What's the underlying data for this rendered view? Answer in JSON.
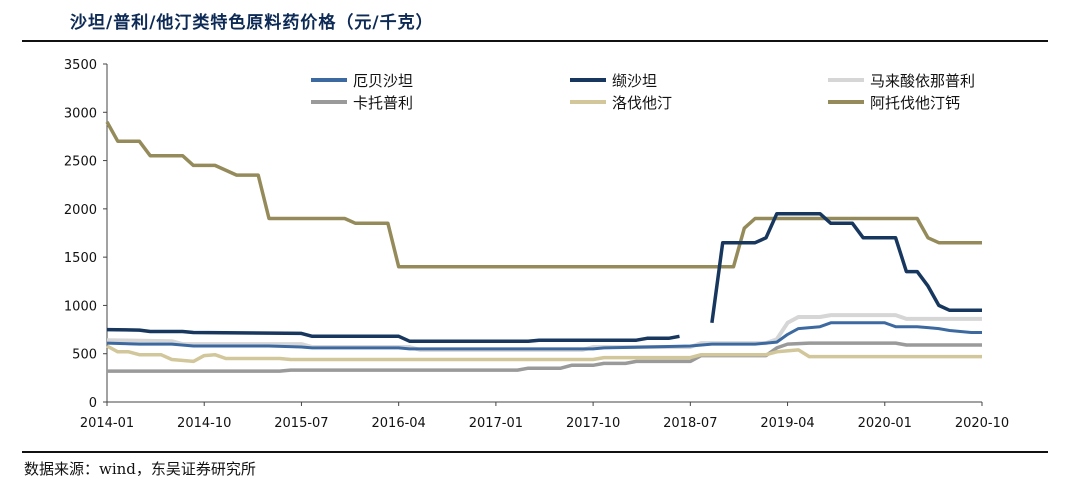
{
  "title": "沙坦/普利/他汀类特色原料药价格（元/千克）",
  "source": "数据来源：wind，东吴证券研究所",
  "chart_data": {
    "type": "line",
    "ylim": [
      0,
      3500
    ],
    "yticks": [
      0,
      500,
      1000,
      1500,
      2000,
      2500,
      3000,
      3500
    ],
    "xlim": [
      0,
      81
    ],
    "xticks": [
      {
        "label": "2014-01",
        "m": 0
      },
      {
        "label": "2014-10",
        "m": 9
      },
      {
        "label": "2015-07",
        "m": 18
      },
      {
        "label": "2016-04",
        "m": 27
      },
      {
        "label": "2017-01",
        "m": 36
      },
      {
        "label": "2017-10",
        "m": 45
      },
      {
        "label": "2018-07",
        "m": 54
      },
      {
        "label": "2019-04",
        "m": 63
      },
      {
        "label": "2020-01",
        "m": 72
      },
      {
        "label": "2020-10",
        "m": 81
      }
    ],
    "series": [
      {
        "name": "厄贝沙坦",
        "color": "#3c6aa0",
        "width": 3,
        "points": [
          [
            0,
            610
          ],
          [
            3,
            600
          ],
          [
            6,
            600
          ],
          [
            8,
            580
          ],
          [
            15,
            580
          ],
          [
            18,
            570
          ],
          [
            19,
            560
          ],
          [
            27,
            560
          ],
          [
            28,
            550
          ],
          [
            45,
            550
          ],
          [
            46,
            560
          ],
          [
            54,
            580
          ],
          [
            56,
            600
          ],
          [
            60,
            600
          ],
          [
            62,
            620
          ],
          [
            63,
            700
          ],
          [
            64,
            760
          ],
          [
            66,
            780
          ],
          [
            67,
            820
          ],
          [
            72,
            820
          ],
          [
            73,
            780
          ],
          [
            75,
            780
          ],
          [
            76,
            770
          ],
          [
            77,
            760
          ],
          [
            78,
            740
          ],
          [
            80,
            720
          ],
          [
            81,
            720
          ]
        ]
      },
      {
        "name": "缬沙坦",
        "color": "#17375e",
        "width": 3.5,
        "points": [
          [
            0,
            750
          ],
          [
            3,
            745
          ],
          [
            4,
            730
          ],
          [
            7,
            730
          ],
          [
            8,
            720
          ],
          [
            18,
            710
          ],
          [
            19,
            680
          ],
          [
            27,
            680
          ],
          [
            28,
            630
          ],
          [
            39,
            630
          ],
          [
            40,
            640
          ],
          [
            49,
            640
          ],
          [
            50,
            660
          ],
          [
            52,
            660
          ],
          [
            53,
            680
          ]
        ],
        "points2": [
          [
            56,
            820
          ],
          [
            57,
            1650
          ],
          [
            60,
            1650
          ],
          [
            61,
            1700
          ],
          [
            62,
            1950
          ],
          [
            66,
            1950
          ],
          [
            67,
            1850
          ],
          [
            69,
            1850
          ],
          [
            70,
            1700
          ],
          [
            73,
            1700
          ],
          [
            74,
            1350
          ],
          [
            75,
            1350
          ],
          [
            76,
            1200
          ],
          [
            77,
            1000
          ],
          [
            78,
            950
          ],
          [
            81,
            950
          ]
        ]
      },
      {
        "name": "马来酸依那普利",
        "color": "#d6d6d6",
        "width": 4,
        "points": [
          [
            0,
            640
          ],
          [
            6,
            630
          ],
          [
            7,
            600
          ],
          [
            18,
            600
          ],
          [
            19,
            570
          ],
          [
            28,
            570
          ],
          [
            29,
            540
          ],
          [
            44,
            540
          ],
          [
            45,
            570
          ],
          [
            54,
            570
          ],
          [
            55,
            610
          ],
          [
            61,
            610
          ],
          [
            62,
            650
          ],
          [
            63,
            820
          ],
          [
            64,
            880
          ],
          [
            66,
            880
          ],
          [
            67,
            900
          ],
          [
            73,
            900
          ],
          [
            74,
            860
          ],
          [
            81,
            860
          ]
        ]
      },
      {
        "name": "卡托普利",
        "color": "#9a9a9a",
        "width": 3.5,
        "points": [
          [
            0,
            320
          ],
          [
            16,
            320
          ],
          [
            17,
            330
          ],
          [
            38,
            330
          ],
          [
            39,
            350
          ],
          [
            42,
            350
          ],
          [
            43,
            380
          ],
          [
            45,
            380
          ],
          [
            46,
            400
          ],
          [
            48,
            400
          ],
          [
            49,
            420
          ],
          [
            54,
            420
          ],
          [
            55,
            480
          ],
          [
            61,
            480
          ],
          [
            62,
            560
          ],
          [
            63,
            600
          ],
          [
            65,
            610
          ],
          [
            73,
            610
          ],
          [
            74,
            590
          ],
          [
            81,
            590
          ]
        ]
      },
      {
        "name": "洛伐他汀",
        "color": "#d2c79a",
        "width": 3.5,
        "points": [
          [
            0,
            580
          ],
          [
            1,
            520
          ],
          [
            2,
            520
          ],
          [
            3,
            490
          ],
          [
            5,
            490
          ],
          [
            6,
            440
          ],
          [
            8,
            420
          ],
          [
            9,
            480
          ],
          [
            10,
            490
          ],
          [
            11,
            450
          ],
          [
            16,
            450
          ],
          [
            17,
            440
          ],
          [
            45,
            440
          ],
          [
            46,
            460
          ],
          [
            54,
            460
          ],
          [
            55,
            490
          ],
          [
            61,
            490
          ],
          [
            62,
            520
          ],
          [
            64,
            540
          ],
          [
            65,
            470
          ],
          [
            81,
            470
          ]
        ]
      },
      {
        "name": "阿托伐他汀钙",
        "color": "#958b5a",
        "width": 3.5,
        "points": [
          [
            0,
            2900
          ],
          [
            1,
            2700
          ],
          [
            3,
            2700
          ],
          [
            4,
            2550
          ],
          [
            7,
            2550
          ],
          [
            8,
            2450
          ],
          [
            10,
            2450
          ],
          [
            12,
            2350
          ],
          [
            14,
            2350
          ],
          [
            15,
            1900
          ],
          [
            22,
            1900
          ],
          [
            23,
            1850
          ],
          [
            26,
            1850
          ],
          [
            27,
            1400
          ],
          [
            56,
            1400
          ],
          [
            58,
            1400
          ],
          [
            59,
            1800
          ],
          [
            60,
            1900
          ],
          [
            74,
            1900
          ],
          [
            75,
            1900
          ],
          [
            76,
            1700
          ],
          [
            77,
            1650
          ],
          [
            81,
            1650
          ]
        ]
      }
    ]
  }
}
